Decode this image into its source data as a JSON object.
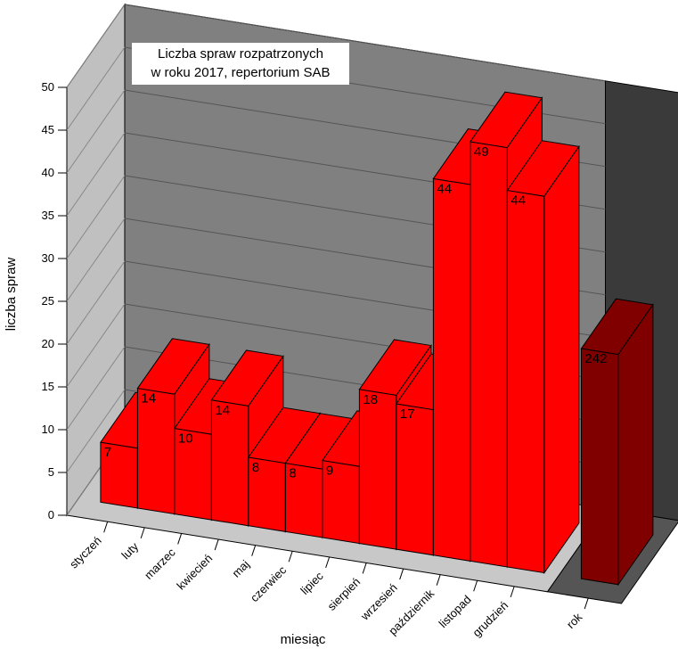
{
  "chart_data": [
    {
      "type": "bar3d",
      "title": [
        "Liczba spraw rozpatrzonych",
        "w roku 2017, repertorium SAB"
      ],
      "x_label": "miesiąc",
      "y_label": "liczba spraw",
      "categories": [
        "styczeń",
        "luty",
        "marzec",
        "kwiecień",
        "maj",
        "czerwiec",
        "lipiec",
        "sierpień",
        "wrzesień",
        "październik",
        "listopad",
        "grudzień"
      ],
      "values": [
        7,
        14,
        10,
        14,
        8,
        8,
        9,
        18,
        17,
        44,
        49,
        44
      ],
      "color": "#ff0000",
      "ylim": [
        0,
        50
      ],
      "yticks": [
        0,
        5,
        10,
        15,
        20,
        25,
        30,
        35,
        40,
        45,
        50
      ],
      "grid": true
    },
    {
      "type": "bar3d",
      "categories": [
        "rok"
      ],
      "values": [
        242
      ],
      "color": "#800000",
      "ylim": [
        0,
        450
      ]
    }
  ]
}
